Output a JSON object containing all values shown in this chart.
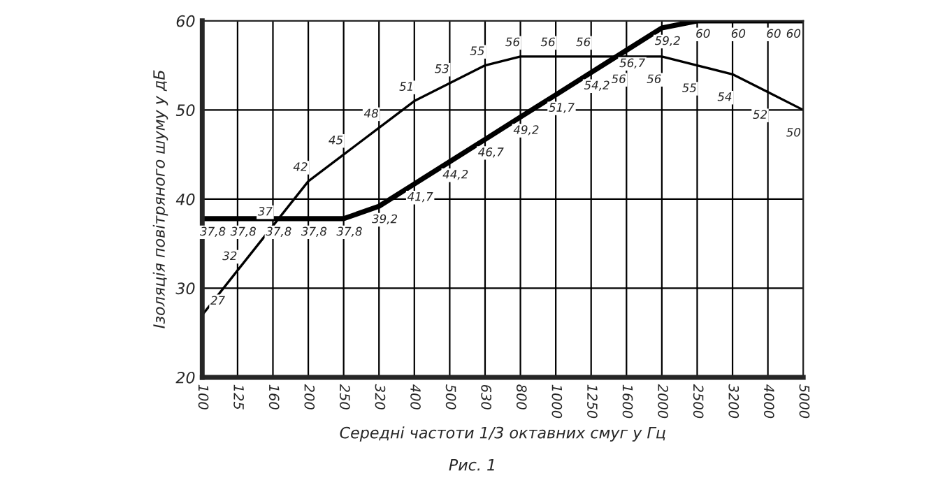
{
  "chart_data": {
    "type": "line",
    "xlabel": "Середні частоти 1/3 октавних смуг у Гц",
    "ylabel": "Ізоляція повітряного шуму у дБ",
    "annotations": [
      "Рис. 1"
    ],
    "categories": [
      "100",
      "125",
      "160",
      "200",
      "250",
      "320",
      "400",
      "500",
      "630",
      "800",
      "1000",
      "1250",
      "1600",
      "2000",
      "2500",
      "3200",
      "4000",
      "5000"
    ],
    "series": [
      {
        "color": "#000000",
        "values": [
          27,
          32,
          37,
          42,
          45,
          48,
          51,
          53,
          55,
          56,
          56,
          56,
          56,
          56,
          55,
          54,
          52,
          50
        ],
        "value_labels": [
          "27",
          "32",
          "37",
          "42",
          "45",
          "48",
          "51",
          "53",
          "55",
          "56",
          "56",
          "56",
          "56",
          "56",
          "55",
          "54",
          "52",
          "50"
        ]
      },
      {
        "color": "#000000",
        "values": [
          37.8,
          37.8,
          37.8,
          37.8,
          37.8,
          39.2,
          41.7,
          44.2,
          46.7,
          49.2,
          51.7,
          54.2,
          56.7,
          59.2,
          60,
          60,
          60,
          60
        ],
        "value_labels": [
          "37,8",
          "37,8",
          "37,8",
          "37,8",
          "37,8",
          "39,2",
          "41,7",
          "44,2",
          "46,7",
          "49,2",
          "51,7",
          "54,2",
          "56,7",
          "59,2",
          "60",
          "60",
          "60",
          "60"
        ]
      }
    ],
    "ylim": [
      20,
      60
    ],
    "yticks": [
      20,
      30,
      40,
      50,
      60
    ],
    "grid": true,
    "legend": false,
    "marker": "none",
    "line_style": "solid"
  }
}
